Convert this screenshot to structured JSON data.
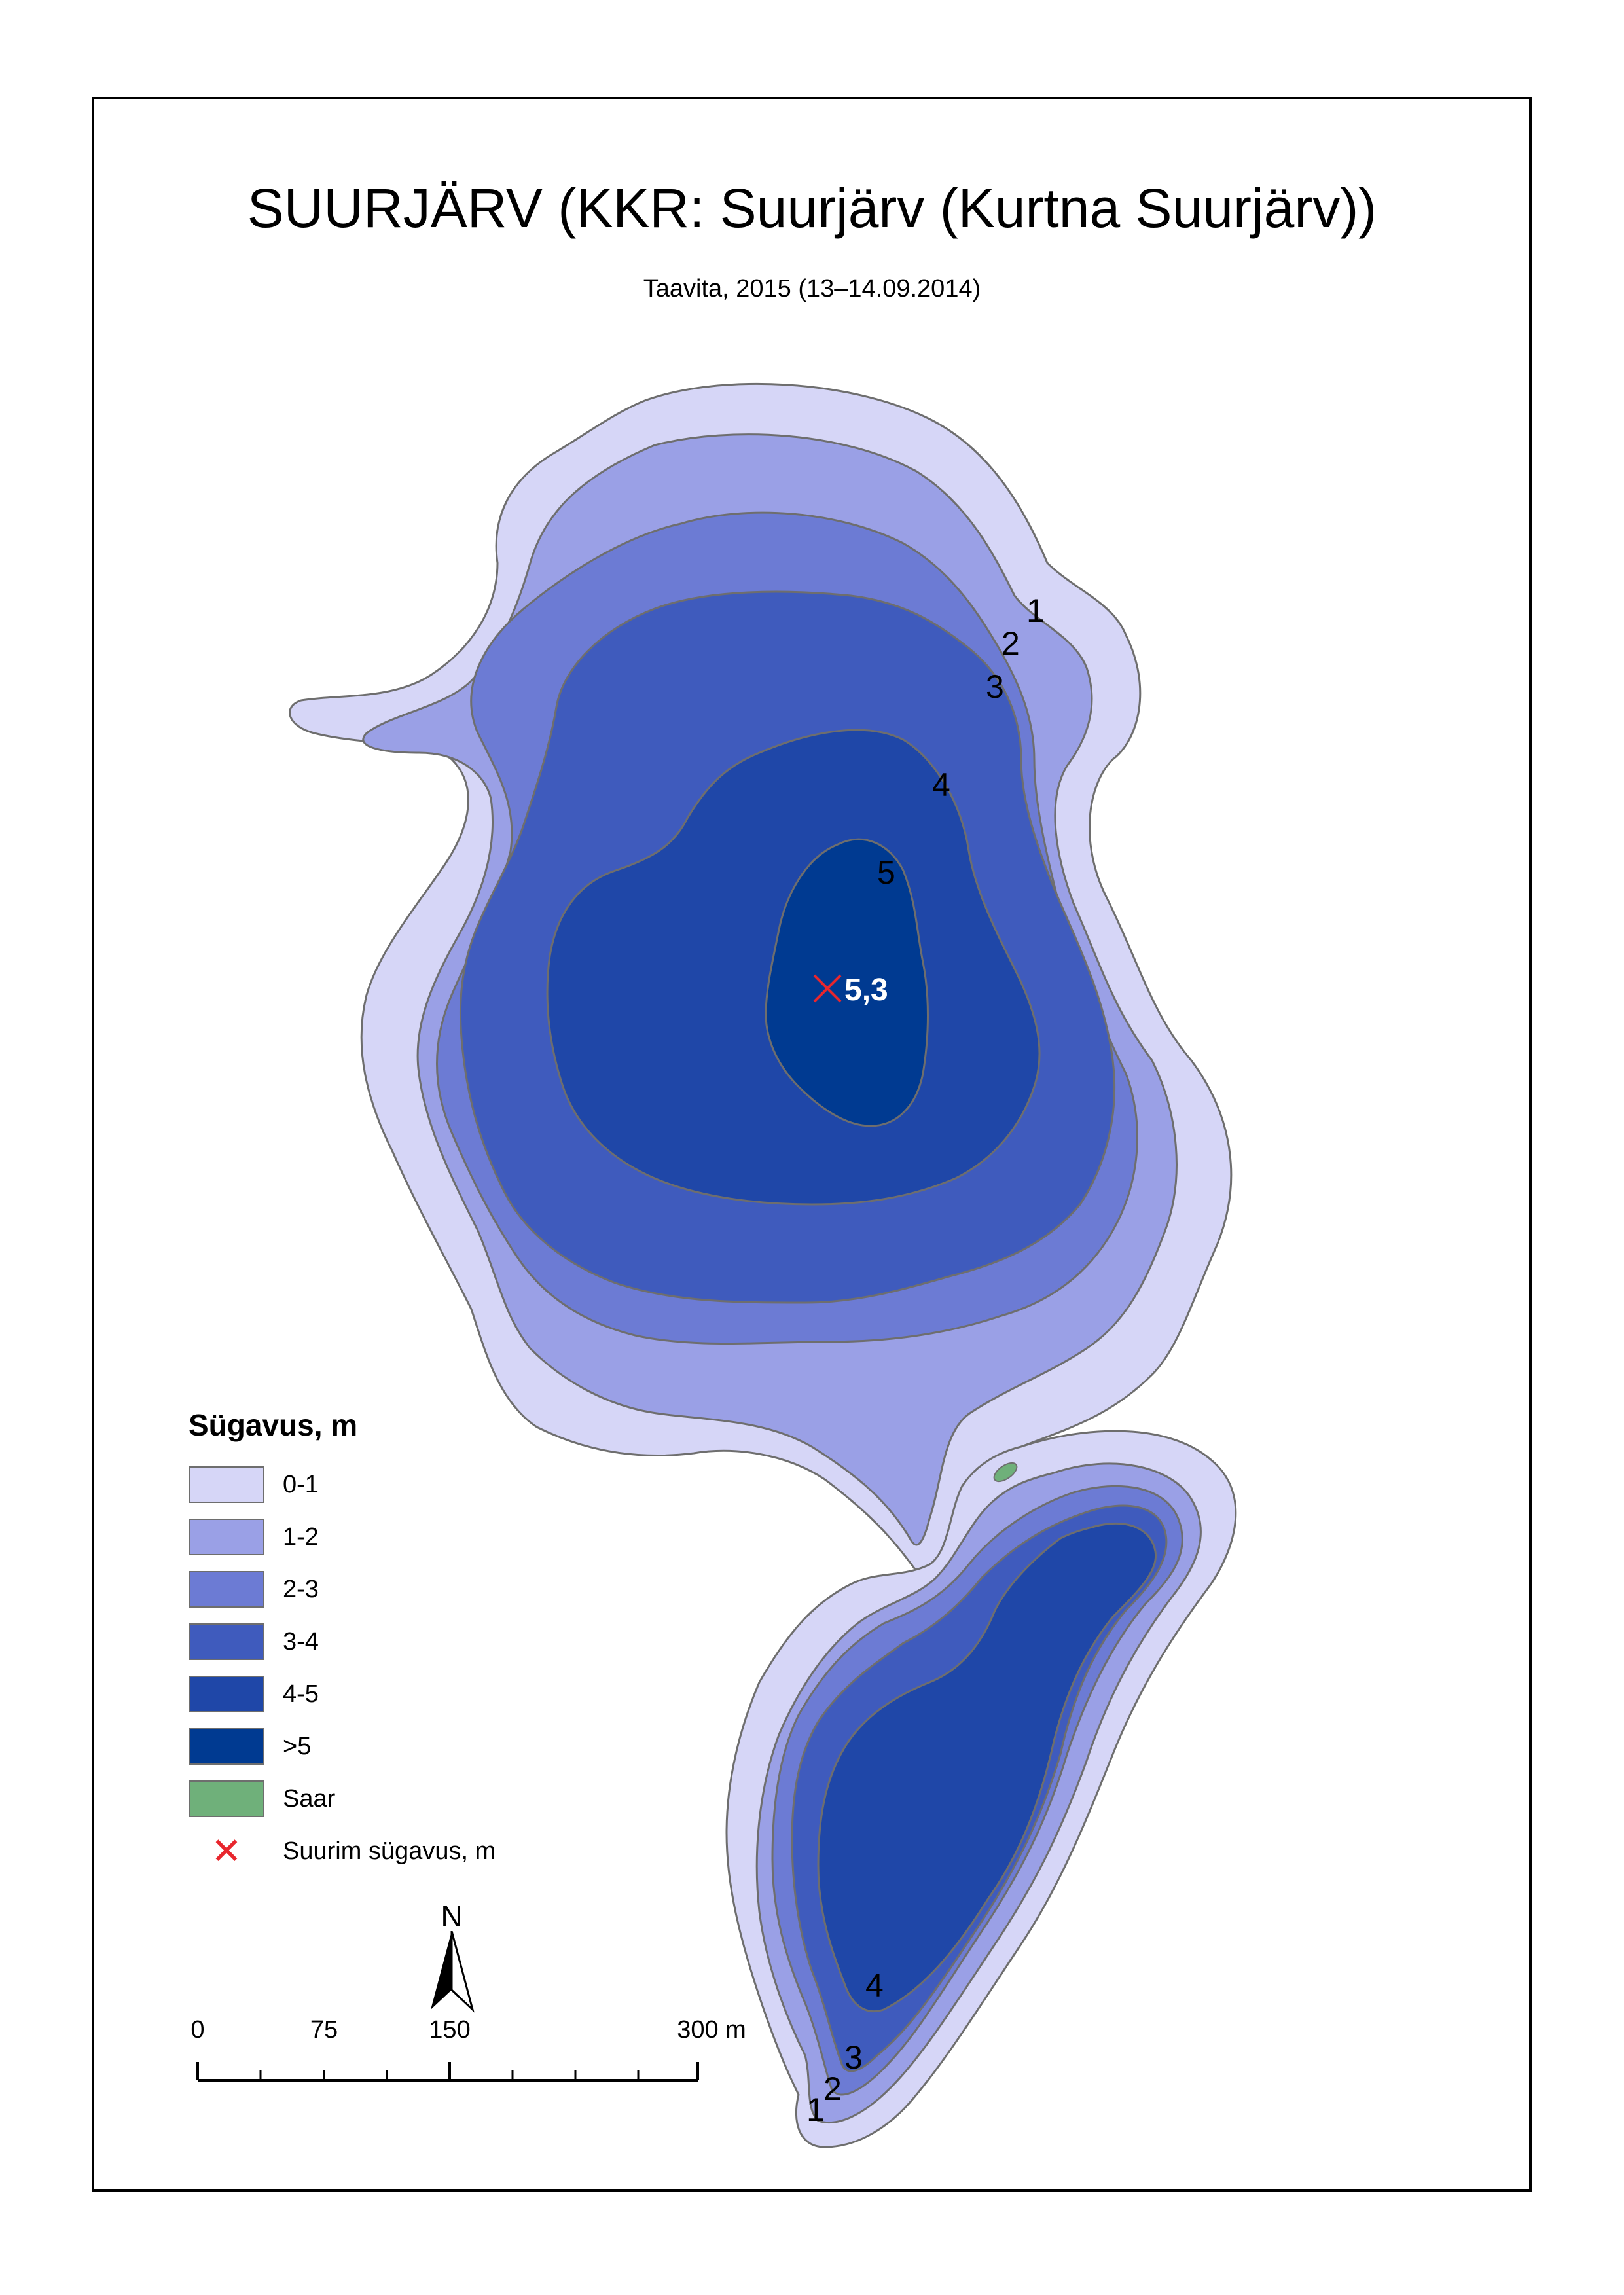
{
  "title": "SUURJÄRV (KKR: Suurjärv (Kurtna Suurjärv))",
  "subtitle": "Taavita, 2015 (13–14.09.2014)",
  "colors": {
    "band_0_1": "#d6d6f7",
    "band_1_2": "#9aa0e6",
    "band_2_3": "#6c7bd4",
    "band_3_4": "#3f5bbd",
    "band_4_5": "#1f47a8",
    "band_gt5": "#003a91",
    "island": "#6fb07a",
    "contour_line": "#6e6e6e",
    "max_marker": "#e8262d"
  },
  "contour_labels": {
    "north": [
      "1",
      "2",
      "3",
      "4",
      "5"
    ],
    "south": [
      "4",
      "3",
      "2",
      "1"
    ]
  },
  "max_depth": {
    "label": "5,3",
    "icon": "x-cross-icon"
  },
  "legend": {
    "title": "Sügavus, m",
    "items": [
      {
        "label": "0-1",
        "color": "#d6d6f7"
      },
      {
        "label": "1-2",
        "color": "#9aa0e6"
      },
      {
        "label": "2-3",
        "color": "#6c7bd4"
      },
      {
        "label": "3-4",
        "color": "#3f5bbd"
      },
      {
        "label": "4-5",
        "color": "#1f47a8"
      },
      {
        "label": ">5",
        "color": "#003a91"
      },
      {
        "label": "Saar",
        "color": "#6fb07a"
      }
    ],
    "max_depth_label": "Suurim sügavus, m"
  },
  "north_arrow": {
    "letter": "N",
    "icon": "north-arrow-icon"
  },
  "scalebar": {
    "labels": [
      "0",
      "75",
      "150",
      "300 m"
    ]
  }
}
